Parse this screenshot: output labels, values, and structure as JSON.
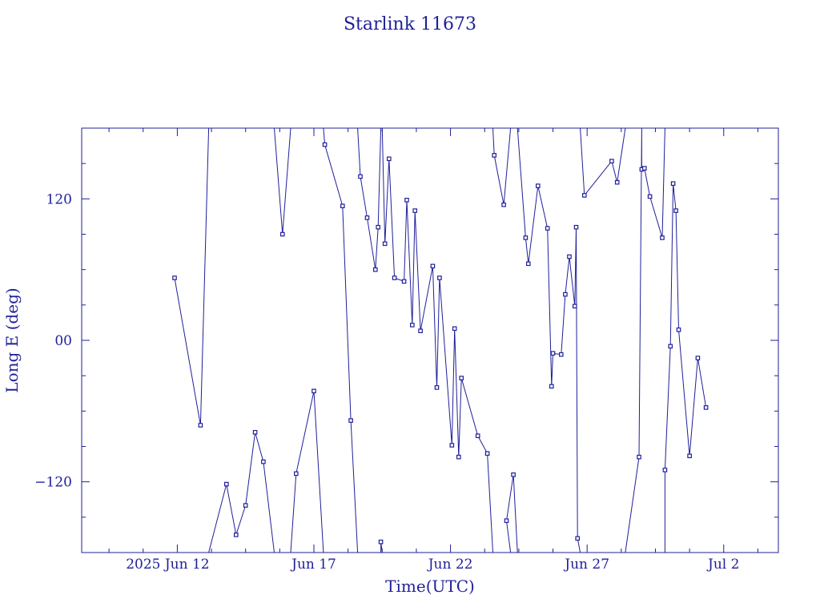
{
  "chart_data": {
    "type": "line",
    "title": "Starlink 11673",
    "xlabel": "Time(UTC)",
    "ylabel": "Long E (deg)",
    "x_unit": "days (June 2025)",
    "xlim": [
      8.5,
      4.0
    ],
    "xlim_note": "x axis spans 2025 Jun 8.5 to Jul 4.0",
    "ylim": [
      -180,
      180
    ],
    "x_tick_labels": [
      "2025 Jun 12",
      "Jun 17",
      "Jun 22",
      "Jun 27",
      "Jul  2"
    ],
    "y_tick_labels": [
      "120",
      "00",
      "−120"
    ],
    "y_ticks": [
      120,
      0,
      -120
    ],
    "grid": false,
    "series": [
      {
        "points": [
          [
            11.9,
            53
          ],
          [
            12.85,
            -72
          ],
          [
            13.15,
            180
          ],
          [
            13.15,
            -180
          ],
          [
            13.8,
            -122
          ],
          [
            14.15,
            -165
          ],
          [
            14.5,
            -140
          ],
          [
            14.85,
            -78
          ],
          [
            15.15,
            -103
          ],
          [
            15.55,
            -180
          ],
          [
            15.55,
            180
          ],
          [
            15.85,
            90
          ],
          [
            16.15,
            180
          ],
          [
            16.15,
            -180
          ],
          [
            16.35,
            -113
          ],
          [
            17.0,
            -43
          ],
          [
            17.35,
            -180
          ],
          [
            17.35,
            180
          ],
          [
            17.4,
            166
          ],
          [
            18.05,
            114
          ],
          [
            18.35,
            -68
          ],
          [
            18.6,
            -180
          ],
          [
            18.6,
            180
          ],
          [
            18.7,
            139
          ],
          [
            18.95,
            104
          ],
          [
            19.25,
            60
          ],
          [
            19.35,
            96
          ],
          [
            19.45,
            180
          ],
          [
            19.45,
            -180
          ],
          [
            19.45,
            -171
          ],
          [
            19.5,
            -180
          ],
          [
            19.5,
            180
          ],
          [
            19.6,
            82
          ],
          [
            19.75,
            154
          ],
          [
            19.95,
            53
          ],
          [
            20.3,
            50
          ],
          [
            20.4,
            119
          ],
          [
            20.6,
            13
          ],
          [
            20.7,
            110
          ],
          [
            20.9,
            8
          ],
          [
            21.35,
            63
          ],
          [
            21.5,
            -40
          ],
          [
            21.6,
            53
          ],
          [
            22.05,
            -89
          ],
          [
            22.15,
            10
          ],
          [
            22.3,
            -99
          ],
          [
            22.4,
            -32
          ],
          [
            23.0,
            -81
          ],
          [
            23.35,
            -96
          ],
          [
            23.55,
            -180
          ],
          [
            23.55,
            180
          ],
          [
            23.6,
            157
          ],
          [
            23.95,
            115
          ],
          [
            24.2,
            180
          ],
          [
            24.2,
            -180
          ],
          [
            24.05,
            -153
          ],
          [
            24.3,
            -114
          ],
          [
            24.45,
            -180
          ],
          [
            24.45,
            180
          ],
          [
            24.75,
            87
          ],
          [
            24.85,
            65
          ],
          [
            25.2,
            131
          ],
          [
            25.55,
            95
          ],
          [
            25.7,
            -39
          ],
          [
            25.75,
            -11
          ],
          [
            26.05,
            -12
          ],
          [
            26.2,
            39
          ],
          [
            26.35,
            71
          ],
          [
            26.55,
            29
          ],
          [
            26.6,
            96
          ],
          [
            26.65,
            -168
          ],
          [
            26.75,
            -180
          ],
          [
            26.75,
            180
          ],
          [
            26.9,
            123
          ],
          [
            27.9,
            152
          ],
          [
            28.1,
            134
          ],
          [
            28.4,
            180
          ],
          [
            28.4,
            -180
          ],
          [
            28.9,
            -99
          ],
          [
            29.0,
            180
          ],
          [
            29.0,
            145
          ],
          [
            29.1,
            146
          ],
          [
            29.3,
            122
          ],
          [
            29.75,
            87
          ],
          [
            29.85,
            180
          ],
          [
            29.85,
            -180
          ],
          [
            29.85,
            -110
          ],
          [
            30.05,
            -5
          ],
          [
            30.15,
            133
          ],
          [
            30.25,
            110
          ],
          [
            30.35,
            9
          ],
          [
            30.75,
            -98
          ],
          [
            31.05,
            -15
          ],
          [
            31.35,
            -57
          ]
        ]
      }
    ]
  }
}
